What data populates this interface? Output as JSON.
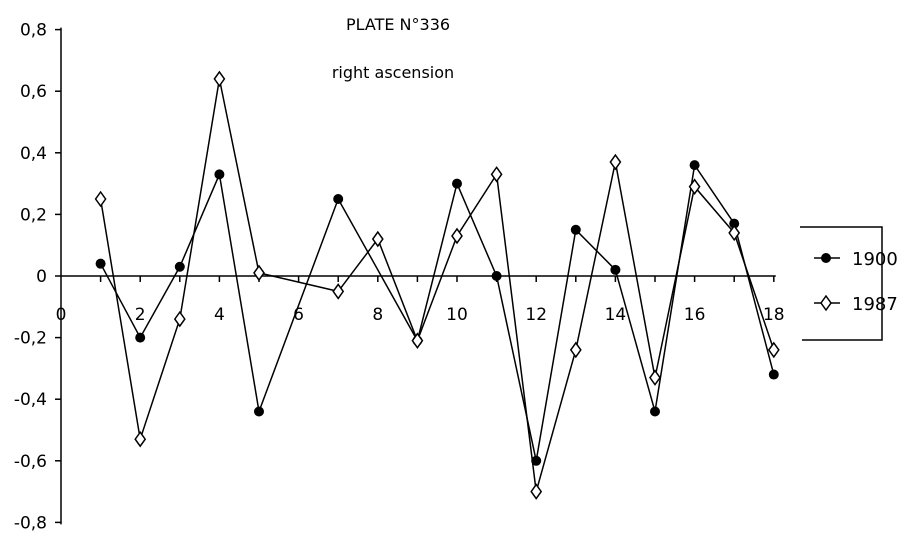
{
  "chart_data": {
    "type": "line",
    "title": "PLATE N°336",
    "subtitle": "right ascension",
    "xlabel": "",
    "ylabel": "",
    "xlim": [
      0,
      18
    ],
    "ylim": [
      -0.8,
      0.8
    ],
    "x_ticks": [
      "0",
      "2",
      "4",
      "6",
      "8",
      "10",
      "12",
      "14",
      "16",
      "18"
    ],
    "y_ticks": [
      "0,8",
      "0,6",
      "0,4",
      "0,2",
      "0",
      "-0,2",
      "-0,4",
      "-0,6",
      "-0,8"
    ],
    "grid": false,
    "legend_position": "right",
    "series": [
      {
        "name": "1900",
        "marker": "filled-circle",
        "x": [
          1,
          2,
          3,
          4,
          5,
          7,
          9,
          10,
          11,
          12,
          13,
          14,
          15,
          16,
          17,
          18
        ],
        "values": [
          0.04,
          -0.2,
          0.03,
          0.33,
          -0.44,
          0.25,
          -0.21,
          0.3,
          0.0,
          -0.6,
          0.15,
          0.02,
          -0.44,
          0.36,
          0.17,
          -0.32
        ],
        "segments": [
          [
            0,
            11
          ],
          [
            11,
            12
          ],
          [
            12,
            15
          ]
        ]
      },
      {
        "name": "1987",
        "marker": "open-diamond",
        "x": [
          1,
          2,
          3,
          4,
          5,
          7,
          8,
          9,
          10,
          11,
          12,
          13,
          14,
          15,
          16,
          17,
          18
        ],
        "values": [
          0.25,
          -0.53,
          -0.14,
          0.64,
          0.01,
          -0.05,
          0.12,
          -0.21,
          0.13,
          0.33,
          -0.7,
          -0.24,
          0.37,
          -0.33,
          0.29,
          0.14,
          -0.24
        ],
        "segments": [
          [
            0,
            16
          ]
        ]
      }
    ]
  },
  "colors": {
    "line": "#000000",
    "background": "#ffffff"
  }
}
